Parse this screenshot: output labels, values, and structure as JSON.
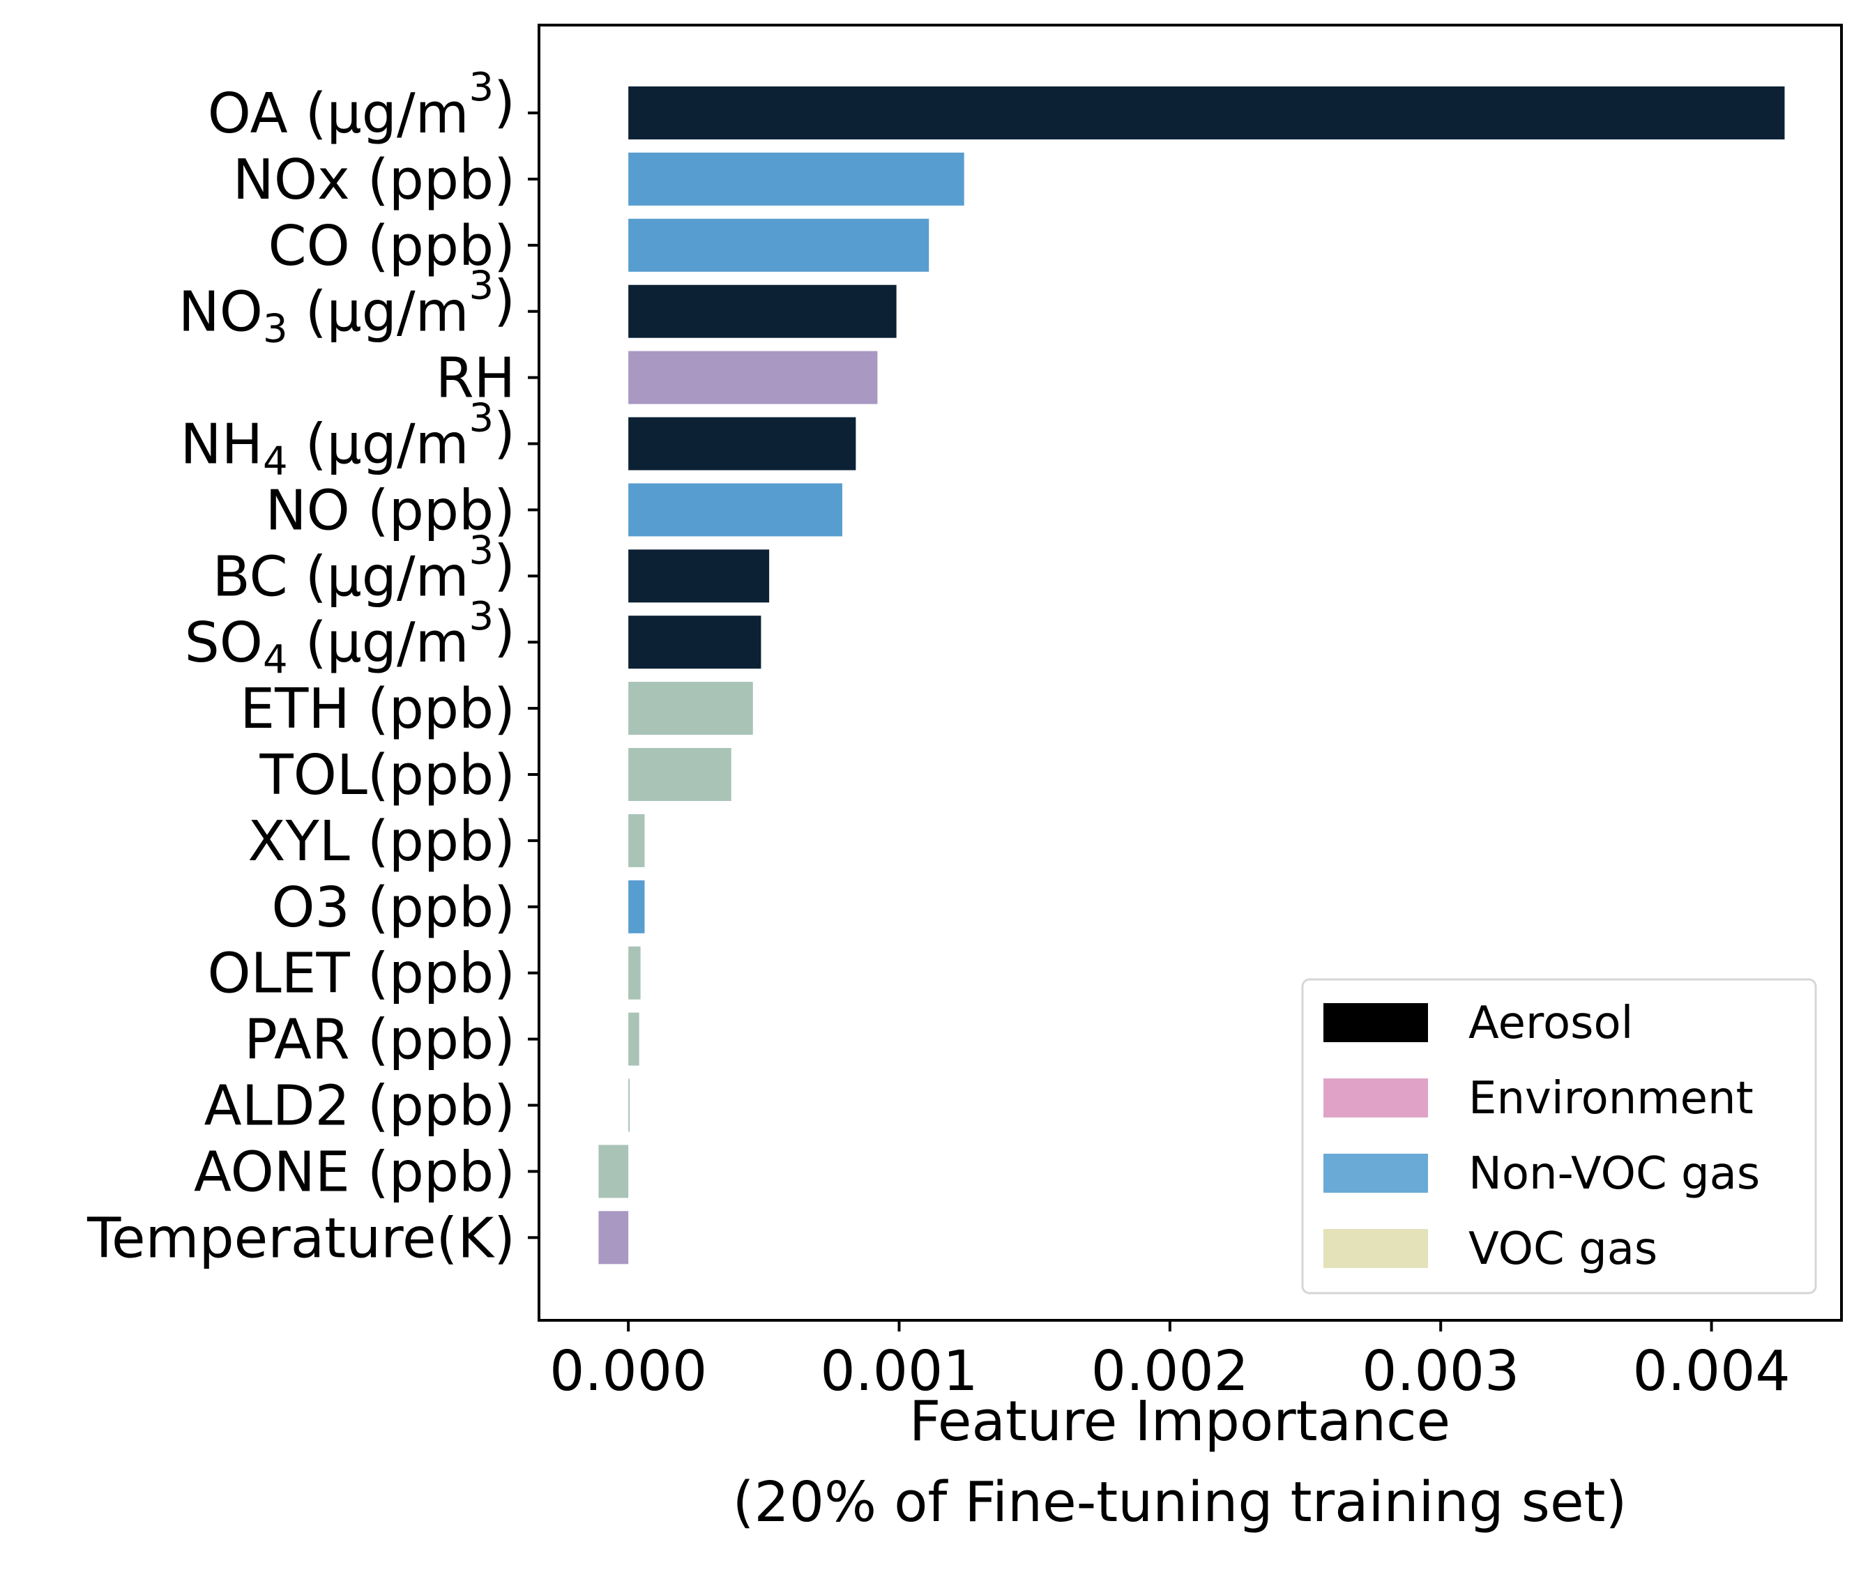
{
  "chart_data": {
    "type": "bar",
    "orientation": "horizontal",
    "title": "",
    "xlabel": "Feature Importance",
    "xlabel_line2": "(20% of Fine-tuning training set)",
    "ylabel": "",
    "xlim": [
      -0.00033,
      0.00448
    ],
    "xticks": [
      0.0,
      0.001,
      0.002,
      0.003,
      0.004
    ],
    "xtick_labels": [
      "0.000",
      "0.001",
      "0.002",
      "0.003",
      "0.004"
    ],
    "grid": false,
    "legend_position": "lower-right",
    "legend": [
      {
        "label": "Aerosol",
        "color": "#000000"
      },
      {
        "label": "Environment",
        "color": "#e0a3c7"
      },
      {
        "label": "Non-VOC gas",
        "color": "#6aaad6"
      },
      {
        "label": "VOC gas",
        "color": "#e3e2b8"
      }
    ],
    "bars": [
      {
        "category": "OA (μg/m",
        "sup": "3",
        "close": ")",
        "value": 0.00427,
        "group": "Aerosol",
        "color": "#0c2134"
      },
      {
        "category": "NOx (ppb)",
        "value": 0.00124,
        "group": "Non-VOC gas",
        "color": "#589dd0"
      },
      {
        "category": "CO (ppb)",
        "value": 0.00111,
        "group": "Non-VOC gas",
        "color": "#589dd0"
      },
      {
        "category": "NO",
        "sub": "3",
        "rest": " (μg/m",
        "sup": "3",
        "close": ")",
        "value": 0.00099,
        "group": "Aerosol",
        "color": "#0c2134"
      },
      {
        "category": "RH",
        "value": 0.00092,
        "group": "Environment",
        "color": "#a898c2"
      },
      {
        "category": "NH",
        "sub": "4",
        "rest": " (μg/m",
        "sup": "3",
        "close": ")",
        "value": 0.00084,
        "group": "Aerosol",
        "color": "#0c2134"
      },
      {
        "category": "NO (ppb)",
        "value": 0.00079,
        "group": "Non-VOC gas",
        "color": "#589dd0"
      },
      {
        "category": "BC (μg/m",
        "sup": "3",
        "close": ")",
        "value": 0.00052,
        "group": "Aerosol",
        "color": "#0c2134"
      },
      {
        "category": "SO",
        "sub": "4",
        "rest": " (μg/m",
        "sup": "3",
        "close": ")",
        "value": 0.00049,
        "group": "Aerosol",
        "color": "#0c2134"
      },
      {
        "category": "ETH (ppb)",
        "value": 0.00046,
        "group": "VOC gas",
        "color": "#a9c3b7"
      },
      {
        "category": "TOL(ppb)",
        "value": 0.00038,
        "group": "VOC gas",
        "color": "#a9c3b7"
      },
      {
        "category": "XYL (ppb)",
        "value": 6e-05,
        "group": "VOC gas",
        "color": "#a9c3b7"
      },
      {
        "category": "O3 (ppb)",
        "value": 6e-05,
        "group": "Non-VOC gas",
        "color": "#589dd0"
      },
      {
        "category": "OLET (ppb)",
        "value": 4.5e-05,
        "group": "VOC gas",
        "color": "#a9c3b7"
      },
      {
        "category": "PAR (ppb)",
        "value": 4e-05,
        "group": "VOC gas",
        "color": "#a9c3b7"
      },
      {
        "category": "ALD2 (ppb)",
        "value": 5e-06,
        "group": "VOC gas",
        "color": "#a9c3b7"
      },
      {
        "category": "AONE (ppb)",
        "value": -0.00011,
        "group": "VOC gas",
        "color": "#a9c3b7"
      },
      {
        "category": "Temperature(K)",
        "value": -0.00011,
        "group": "Environment",
        "color": "#a898c2"
      }
    ]
  }
}
